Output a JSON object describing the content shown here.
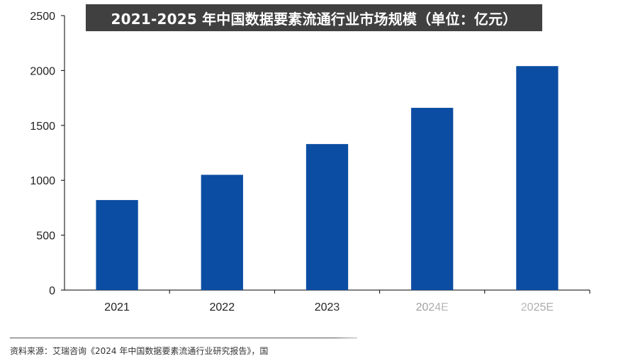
{
  "chart_data": {
    "type": "bar",
    "title": "2021-2025 年中国数据要素流通行业市场规模（单位：亿元）",
    "categories": [
      "2021",
      "2022",
      "2023",
      "2024E",
      "2025E"
    ],
    "values": [
      820,
      1050,
      1330,
      1660,
      2040
    ],
    "ylim": [
      0,
      2500
    ],
    "yticks": [
      0,
      500,
      1000,
      1500,
      2000,
      2500
    ],
    "xlabel": "",
    "ylabel": "",
    "grid": false,
    "legend": "none",
    "bar_color": "#0b4da2"
  },
  "source_text": "资料来源：艾瑞咨询《2024 年中国数据要素流通行业研究报告》，国"
}
